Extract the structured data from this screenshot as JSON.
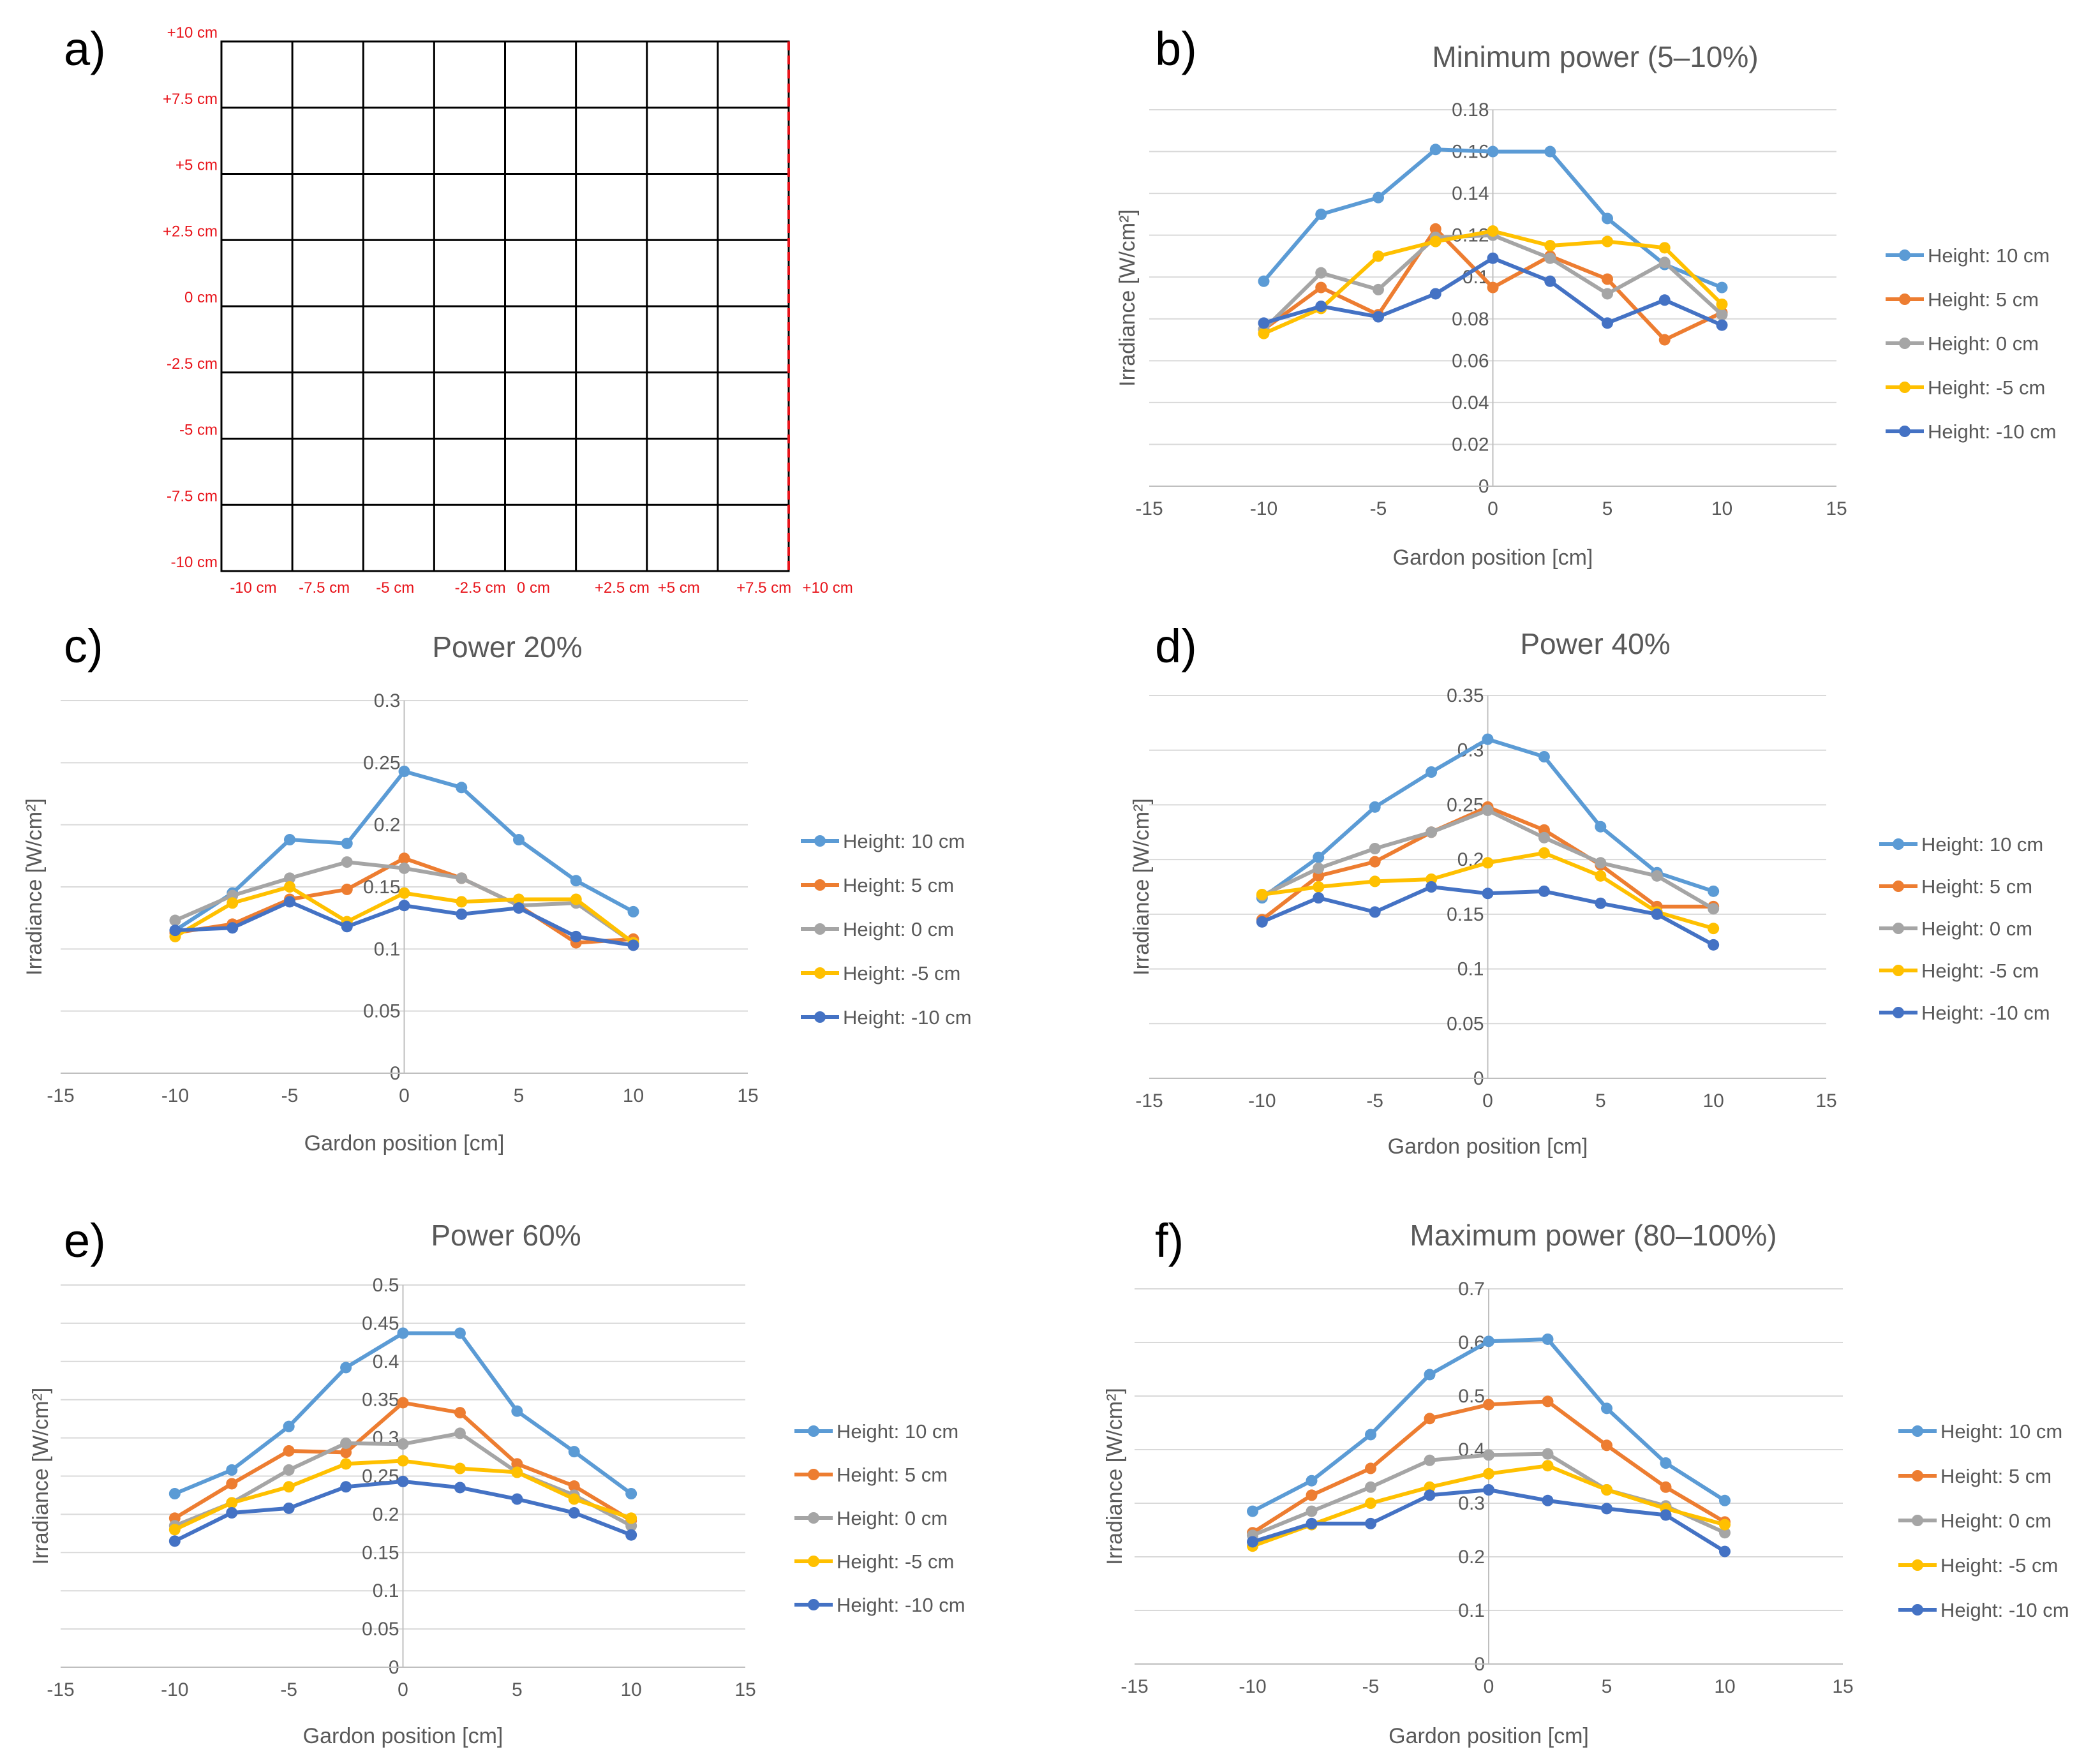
{
  "figure": {
    "panel_letters": [
      "a)",
      "b)",
      "c)",
      "d)",
      "e)",
      "f)"
    ]
  },
  "grid_panel": {
    "y_labels": [
      "+10 cm",
      "+7.5 cm",
      "+5 cm",
      "+2.5 cm",
      "0 cm",
      "-2.5 cm",
      "-5 cm",
      "-7.5 cm",
      "-10 cm"
    ],
    "x_labels": [
      "-10 cm",
      "-7.5 cm",
      "-5 cm",
      "-2.5 cm",
      "0 cm",
      "+2.5 cm",
      "+5 cm",
      "+7.5 cm",
      "+10 cm"
    ],
    "label_color": "#e8141b"
  },
  "colors": {
    "Height: 10 cm": "#5b9bd5",
    "Height: 5 cm": "#ed7d31",
    "Height: 0 cm": "#a5a5a5",
    "Height: -5 cm": "#ffc000",
    "Height: -10 cm": "#4472c4"
  },
  "chart_data": [
    {
      "panel": "b)",
      "type": "line",
      "title": "Minimum power (5–10%)",
      "xlabel": "Gardon position [cm]",
      "ylabel": "Irradiance [W/cm²]",
      "xlim": [
        -15,
        15
      ],
      "xticks": [
        -15,
        -10,
        -5,
        0,
        5,
        10,
        15
      ],
      "ylim": [
        0,
        0.18
      ],
      "yticks": [
        0,
        0.02,
        0.04,
        0.06,
        0.08,
        0.1,
        0.12,
        0.14,
        0.16,
        0.18
      ],
      "ytick_labels": [
        "0",
        "0.02",
        "0.04",
        "0.06",
        "0.08",
        "0.1",
        "0.12",
        "0.14",
        "0.16",
        "0.18"
      ],
      "x": [
        -10,
        -7.5,
        -5,
        -2.5,
        0,
        2.5,
        5,
        7.5,
        10
      ],
      "series": [
        {
          "name": "Height: 10 cm",
          "values": [
            0.098,
            0.13,
            0.138,
            0.161,
            0.16,
            0.16,
            0.128,
            0.106,
            0.095
          ]
        },
        {
          "name": "Height: 5 cm",
          "values": [
            0.075,
            0.095,
            0.082,
            0.123,
            0.095,
            0.11,
            0.099,
            0.07,
            0.083
          ]
        },
        {
          "name": "Height: 0 cm",
          "values": [
            0.075,
            0.102,
            0.094,
            0.119,
            0.12,
            0.109,
            0.092,
            0.107,
            0.082
          ]
        },
        {
          "name": "Height: -5 cm",
          "values": [
            0.073,
            0.085,
            0.11,
            0.117,
            0.122,
            0.115,
            0.117,
            0.114,
            0.087
          ]
        },
        {
          "name": "Height: -10 cm",
          "values": [
            0.078,
            0.086,
            0.081,
            0.092,
            0.109,
            0.098,
            0.078,
            0.089,
            0.077
          ]
        }
      ]
    },
    {
      "panel": "c)",
      "type": "line",
      "title": "Power 20%",
      "xlabel": "Gardon position [cm]",
      "ylabel": "Irradiance [W/cm²]",
      "xlim": [
        -15,
        15
      ],
      "xticks": [
        -15,
        -10,
        -5,
        0,
        5,
        10,
        15
      ],
      "ylim": [
        0,
        0.3
      ],
      "yticks": [
        0,
        0.05,
        0.1,
        0.15,
        0.2,
        0.25,
        0.3
      ],
      "ytick_labels": [
        "0",
        "0.05",
        "0.1",
        "0.15",
        "0.2",
        "0.25",
        "0.3"
      ],
      "x": [
        -10,
        -7.5,
        -5,
        -2.5,
        0,
        2.5,
        5,
        7.5,
        10
      ],
      "series": [
        {
          "name": "Height: 10 cm",
          "values": [
            0.115,
            0.145,
            0.188,
            0.185,
            0.243,
            0.23,
            0.188,
            0.155,
            0.13
          ]
        },
        {
          "name": "Height: 5 cm",
          "values": [
            0.113,
            0.12,
            0.14,
            0.148,
            0.173,
            0.157,
            0.135,
            0.105,
            0.108
          ]
        },
        {
          "name": "Height: 0 cm",
          "values": [
            0.123,
            0.143,
            0.157,
            0.17,
            0.165,
            0.157,
            0.135,
            0.137,
            0.105
          ]
        },
        {
          "name": "Height: -5 cm",
          "values": [
            0.11,
            0.137,
            0.15,
            0.122,
            0.145,
            0.138,
            0.14,
            0.14,
            0.105
          ]
        },
        {
          "name": "Height: -10 cm",
          "values": [
            0.115,
            0.117,
            0.138,
            0.118,
            0.135,
            0.128,
            0.133,
            0.11,
            0.103
          ]
        }
      ]
    },
    {
      "panel": "d)",
      "type": "line",
      "title": "Power 40%",
      "xlabel": "Gardon position [cm]",
      "ylabel": "Irradiance [W/cm²]",
      "xlim": [
        -15,
        15
      ],
      "xticks": [
        -15,
        -10,
        -5,
        0,
        5,
        10,
        15
      ],
      "ylim": [
        0,
        0.35
      ],
      "yticks": [
        0,
        0.05,
        0.1,
        0.15,
        0.2,
        0.25,
        0.3,
        0.35
      ],
      "ytick_labels": [
        "0",
        "0.05",
        "0.1",
        "0.15",
        "0.2",
        "0.25",
        "0.3",
        "0.35"
      ],
      "x": [
        -10,
        -7.5,
        -5,
        -2.5,
        0,
        2.5,
        5,
        7.5,
        10
      ],
      "series": [
        {
          "name": "Height: 10 cm",
          "values": [
            0.165,
            0.202,
            0.248,
            0.28,
            0.31,
            0.294,
            0.23,
            0.188,
            0.171
          ]
        },
        {
          "name": "Height: 5 cm",
          "values": [
            0.145,
            0.185,
            0.198,
            0.225,
            0.248,
            0.227,
            0.195,
            0.157,
            0.157
          ]
        },
        {
          "name": "Height: 0 cm",
          "values": [
            0.167,
            0.192,
            0.21,
            0.225,
            0.245,
            0.22,
            0.197,
            0.185,
            0.155
          ]
        },
        {
          "name": "Height: -5 cm",
          "values": [
            0.168,
            0.175,
            0.18,
            0.182,
            0.197,
            0.206,
            0.185,
            0.152,
            0.137
          ]
        },
        {
          "name": "Height: -10 cm",
          "values": [
            0.143,
            0.165,
            0.152,
            0.175,
            0.169,
            0.171,
            0.16,
            0.15,
            0.122
          ]
        }
      ]
    },
    {
      "panel": "e)",
      "type": "line",
      "title": "Power 60%",
      "xlabel": "Gardon position [cm]",
      "ylabel": "Irradiance [W/cm²]",
      "xlim": [
        -15,
        15
      ],
      "xticks": [
        -15,
        -10,
        -5,
        0,
        5,
        10,
        15
      ],
      "ylim": [
        0,
        0.5
      ],
      "yticks": [
        0,
        0.05,
        0.1,
        0.15,
        0.2,
        0.25,
        0.3,
        0.35,
        0.4,
        0.45,
        0.5
      ],
      "ytick_labels": [
        "0",
        "0.05",
        "0.1",
        "0.15",
        "0.2",
        "0.25",
        "0.3",
        "0.35",
        "0.4",
        "0.45",
        "0.5"
      ],
      "x": [
        -10,
        -7.5,
        -5,
        -2.5,
        0,
        2.5,
        5,
        7.5,
        10
      ],
      "series": [
        {
          "name": "Height: 10 cm",
          "values": [
            0.227,
            0.258,
            0.315,
            0.392,
            0.437,
            0.437,
            0.335,
            0.282,
            0.227
          ]
        },
        {
          "name": "Height: 5 cm",
          "values": [
            0.195,
            0.24,
            0.283,
            0.281,
            0.346,
            0.333,
            0.266,
            0.237,
            0.192
          ]
        },
        {
          "name": "Height: 0 cm",
          "values": [
            0.185,
            0.215,
            0.258,
            0.293,
            0.292,
            0.306,
            0.255,
            0.225,
            0.185
          ]
        },
        {
          "name": "Height: -5 cm",
          "values": [
            0.18,
            0.215,
            0.236,
            0.266,
            0.27,
            0.26,
            0.255,
            0.22,
            0.195
          ]
        },
        {
          "name": "Height: -10 cm",
          "values": [
            0.165,
            0.202,
            0.208,
            0.236,
            0.243,
            0.235,
            0.22,
            0.202,
            0.173
          ]
        }
      ]
    },
    {
      "panel": "f)",
      "type": "line",
      "title": "Maximum power (80–100%)",
      "xlabel": "Gardon position [cm]",
      "ylabel": "Irradiance [W/cm²]",
      "xlim": [
        -15,
        15
      ],
      "xticks": [
        -15,
        -10,
        -5,
        0,
        5,
        10,
        15
      ],
      "ylim": [
        0,
        0.7
      ],
      "yticks": [
        0,
        0.1,
        0.2,
        0.3,
        0.4,
        0.5,
        0.6,
        0.7
      ],
      "ytick_labels": [
        "0",
        "0.1",
        "0.2",
        "0.3",
        "0.4",
        "0.5",
        "0.6",
        "0.7"
      ],
      "x": [
        -10,
        -7.5,
        -5,
        -2.5,
        0,
        2.5,
        5,
        7.5,
        10
      ],
      "series": [
        {
          "name": "Height: 10 cm",
          "values": [
            0.285,
            0.342,
            0.428,
            0.54,
            0.602,
            0.606,
            0.477,
            0.375,
            0.305
          ]
        },
        {
          "name": "Height: 5 cm",
          "values": [
            0.245,
            0.315,
            0.365,
            0.458,
            0.484,
            0.49,
            0.408,
            0.33,
            0.265
          ]
        },
        {
          "name": "Height: 0 cm",
          "values": [
            0.24,
            0.285,
            0.33,
            0.38,
            0.39,
            0.392,
            0.325,
            0.295,
            0.245
          ]
        },
        {
          "name": "Height: -5 cm",
          "values": [
            0.22,
            0.26,
            0.3,
            0.33,
            0.355,
            0.37,
            0.325,
            0.29,
            0.26
          ]
        },
        {
          "name": "Height: -10 cm",
          "values": [
            0.228,
            0.262,
            0.262,
            0.315,
            0.325,
            0.305,
            0.29,
            0.278,
            0.21
          ]
        }
      ]
    }
  ]
}
